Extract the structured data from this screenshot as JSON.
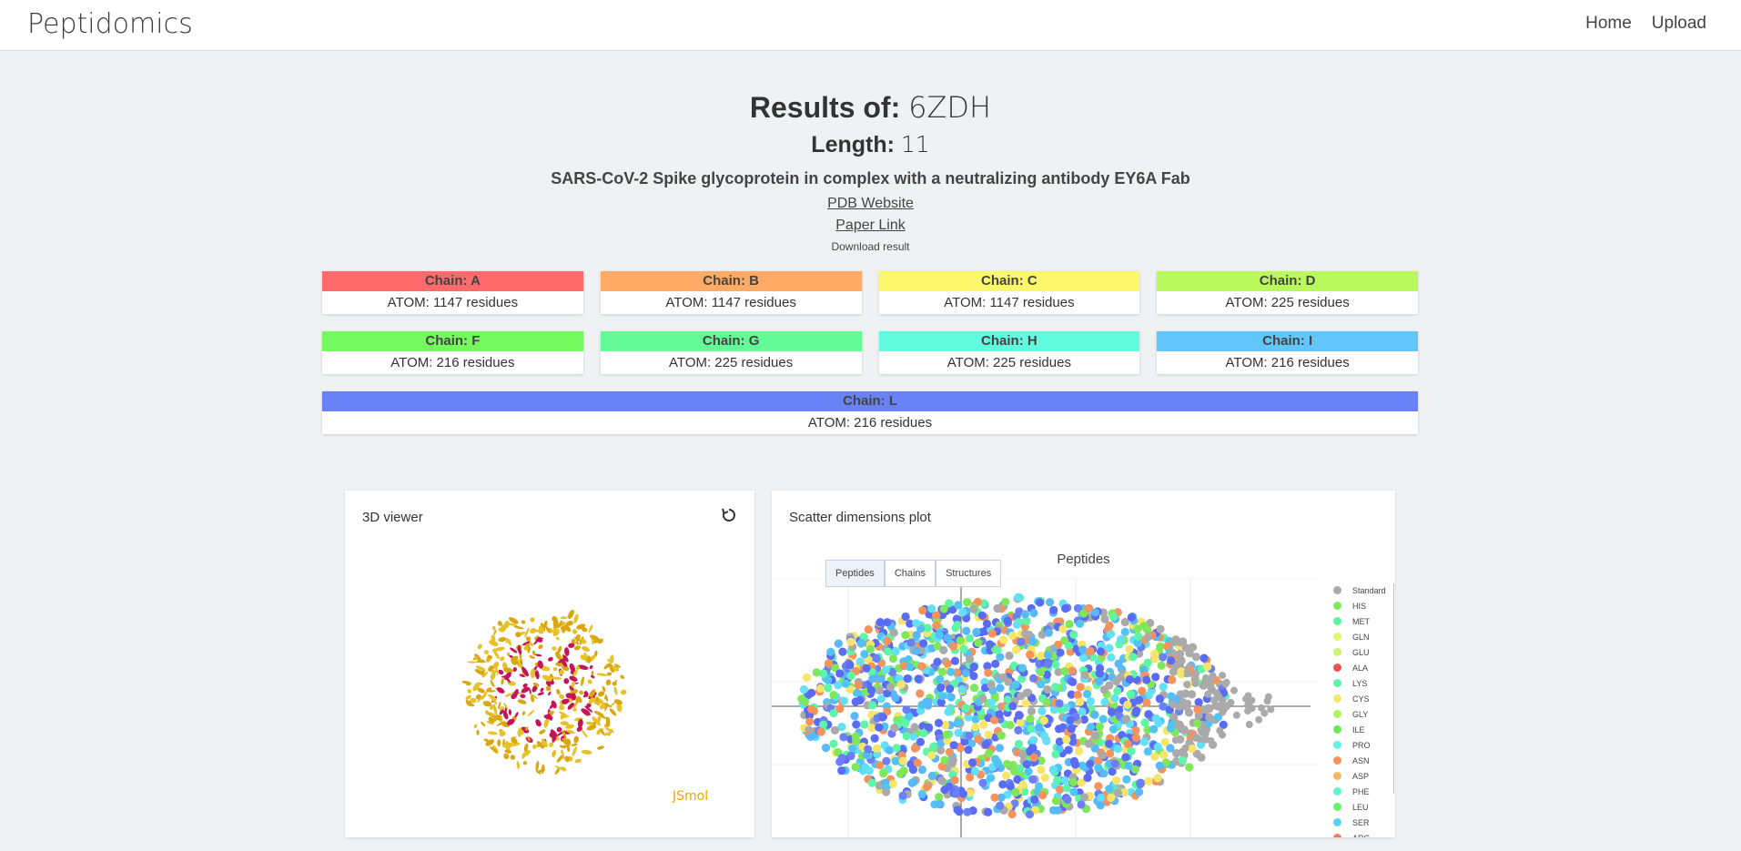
{
  "navbar": {
    "brand": "Peptidomics",
    "links": [
      "Home",
      "Upload"
    ]
  },
  "header": {
    "results_label": "Results of:",
    "results_value": "6ZDH",
    "length_label": "Length:",
    "length_value": "11",
    "description": "SARS-CoV-2 Spike glycoprotein in complex with a neutralizing antibody EY6A Fab",
    "pdb_link": "PDB Website",
    "paper_link": "Paper Link",
    "download": "Download result"
  },
  "chains": [
    {
      "label": "Chain: A",
      "info": "ATOM: 1147 residues",
      "color": "#ff6b6b"
    },
    {
      "label": "Chain: B",
      "info": "ATOM: 1147 residues",
      "color": "#ffab66"
    },
    {
      "label": "Chain: C",
      "info": "ATOM: 1147 residues",
      "color": "#fdf76b"
    },
    {
      "label": "Chain: D",
      "info": "ATOM: 225 residues",
      "color": "#b9f95c"
    },
    {
      "label": "Chain: F",
      "info": "ATOM: 216 residues",
      "color": "#74fa5f"
    },
    {
      "label": "Chain: G",
      "info": "ATOM: 225 residues",
      "color": "#63fa97"
    },
    {
      "label": "Chain: H",
      "info": "ATOM: 225 residues",
      "color": "#63fbdf"
    },
    {
      "label": "Chain: I",
      "info": "ATOM: 216 residues",
      "color": "#63c6fb"
    },
    {
      "label": "Chain: L",
      "info": "ATOM: 216 residues",
      "color": "#6a82f8"
    }
  ],
  "viewer": {
    "title": "3D viewer",
    "jsmol": "JSmol"
  },
  "scatter": {
    "title": "Scatter dimensions plot",
    "plot_title": "Peptides",
    "tabs": [
      "Peptides",
      "Chains",
      "Structures"
    ],
    "legend": [
      {
        "label": "Standard",
        "color": "#aaaaaa"
      },
      {
        "label": "HIS",
        "color": "#7fe85a"
      },
      {
        "label": "MET",
        "color": "#5ef59a"
      },
      {
        "label": "GLN",
        "color": "#e4f56b"
      },
      {
        "label": "GLU",
        "color": "#c9f46b"
      },
      {
        "label": "ALA",
        "color": "#f05050"
      },
      {
        "label": "LYS",
        "color": "#5ef5a8"
      },
      {
        "label": "CYS",
        "color": "#f5e66b"
      },
      {
        "label": "GLY",
        "color": "#b2f05e"
      },
      {
        "label": "ILE",
        "color": "#6ae85a"
      },
      {
        "label": "PRO",
        "color": "#5ef5e6"
      },
      {
        "label": "ASN",
        "color": "#f5935e"
      },
      {
        "label": "ASP",
        "color": "#f5b86b"
      },
      {
        "label": "PHE",
        "color": "#5ef5d2"
      },
      {
        "label": "LEU",
        "color": "#6af06a"
      },
      {
        "label": "SER",
        "color": "#5ed2f5"
      },
      {
        "label": "ARG",
        "color": "#f57a5e"
      }
    ]
  }
}
